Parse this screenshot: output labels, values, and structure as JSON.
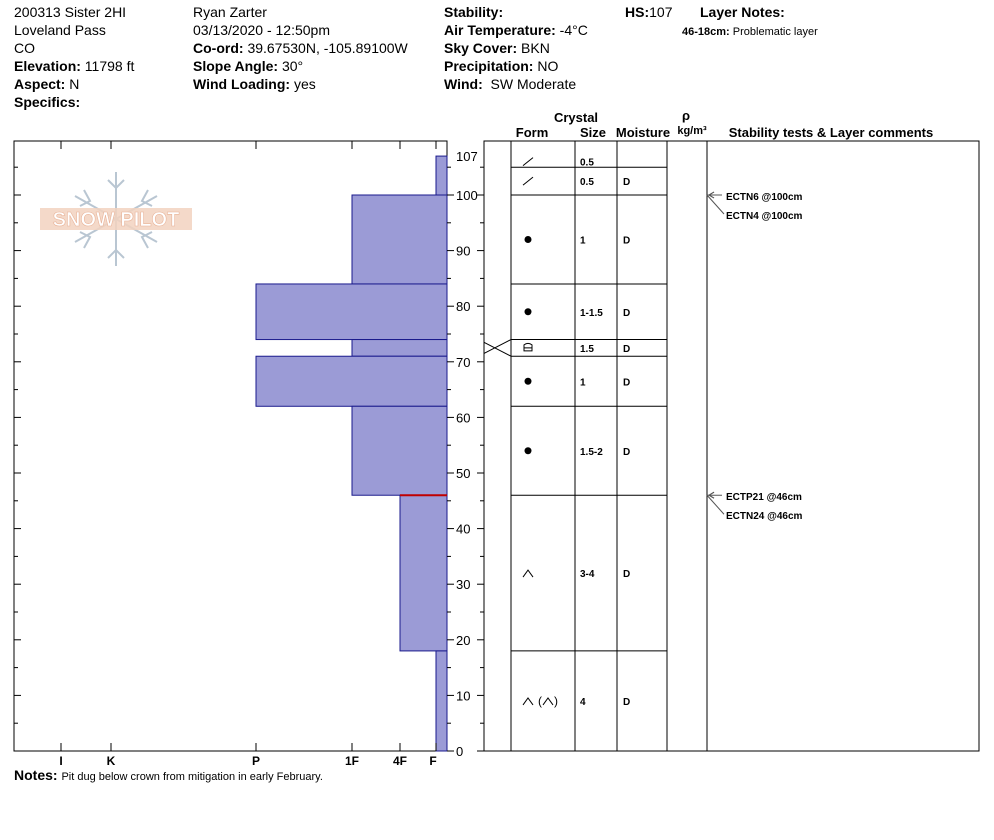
{
  "header": {
    "col1": [
      "200313 Sister 2HI",
      "Loveland Pass",
      "CO"
    ],
    "elevation_label": "Elevation:",
    "elevation": "11798 ft",
    "aspect_label": "Aspect:",
    "aspect": "N",
    "specifics_label": "Specifics:",
    "observer": "Ryan Zarter",
    "datetime": "03/13/2020 - 12:50pm",
    "coord_label": "Co-ord:",
    "coord": "39.67530N, -105.89100W",
    "slope_label": "Slope Angle:",
    "slope": "30°",
    "wind_loading_label": "Wind Loading:",
    "wind_loading": "yes",
    "stability_label": "Stability:",
    "air_temp_label": "Air Temperature:",
    "air_temp": "-4°C",
    "sky_label": "Sky Cover:",
    "sky": "BKN",
    "precip_label": "Precipitation:",
    "precip": "NO",
    "wind_label": "Wind:",
    "wind": "SW Moderate",
    "hs_label": "HS:",
    "hs": "107",
    "layer_notes_label": "Layer Notes:",
    "layer_note_range": "46-18cm:",
    "layer_note_text": "Problematic layer"
  },
  "logo_text": "SNOW PILOT",
  "notes_label": "Notes:",
  "notes": "Pit dug below crown from mitigation in early February.",
  "table_headers": {
    "crystal": "Crystal",
    "form": "Form",
    "size": "Size",
    "moisture": "Moisture",
    "rho": "ρ",
    "density_unit": "kg/m³",
    "stability": "Stability tests & Layer comments"
  },
  "chart_data": {
    "type": "bar",
    "orientation": "horizontal",
    "y_axis": "height (cm)",
    "ylim": [
      0,
      107
    ],
    "yticks": [
      0,
      10,
      20,
      30,
      40,
      50,
      60,
      70,
      80,
      90,
      100,
      107
    ],
    "hardness_scale": [
      "F",
      "4F",
      "1F",
      "P",
      "K",
      "I"
    ],
    "layers": [
      {
        "top": 107,
        "bottom": 100,
        "hardness": "F",
        "form": "slash",
        "size": "0.5",
        "moisture": ""
      },
      {
        "top": 100,
        "bottom": 84,
        "hardness": "1F",
        "form": "dot",
        "size": "1",
        "moisture": "D"
      },
      {
        "top": 84,
        "bottom": 74,
        "hardness": "P",
        "form": "dot",
        "size": "1-1.5",
        "moisture": "D"
      },
      {
        "top": 74,
        "bottom": 71,
        "hardness": "1F",
        "form": "cup",
        "size": "1.5",
        "moisture": "D"
      },
      {
        "top": 71,
        "bottom": 62,
        "hardness": "P",
        "form": "dot",
        "size": "1",
        "moisture": "D"
      },
      {
        "top": 62,
        "bottom": 46,
        "hardness": "1F",
        "form": "dot",
        "size": "1.5-2",
        "moisture": "D"
      },
      {
        "top": 46,
        "bottom": 18,
        "hardness": "4F",
        "form": "caret",
        "size": "3-4",
        "moisture": "D"
      },
      {
        "top": 18,
        "bottom": 0,
        "hardness": "F",
        "form": "caret2",
        "size": "4",
        "moisture": "D"
      }
    ],
    "form_rows_extra": [
      {
        "top": 105,
        "bottom": 100,
        "form": "slash",
        "size": "0.5",
        "moisture": "D"
      }
    ],
    "tests": [
      {
        "label": "ECTN6 @100cm",
        "height": 100
      },
      {
        "label": "ECTN4 @100cm",
        "height": 100
      },
      {
        "label": "ECTP21 @46cm",
        "height": 46
      },
      {
        "label": "ECTN24 @46cm",
        "height": 46
      }
    ],
    "problem_interface_cm": 46,
    "colors": {
      "bar_fill": "#9b9bd6",
      "bar_stroke": "#1a1a8c",
      "problem_line": "#c00000"
    }
  }
}
